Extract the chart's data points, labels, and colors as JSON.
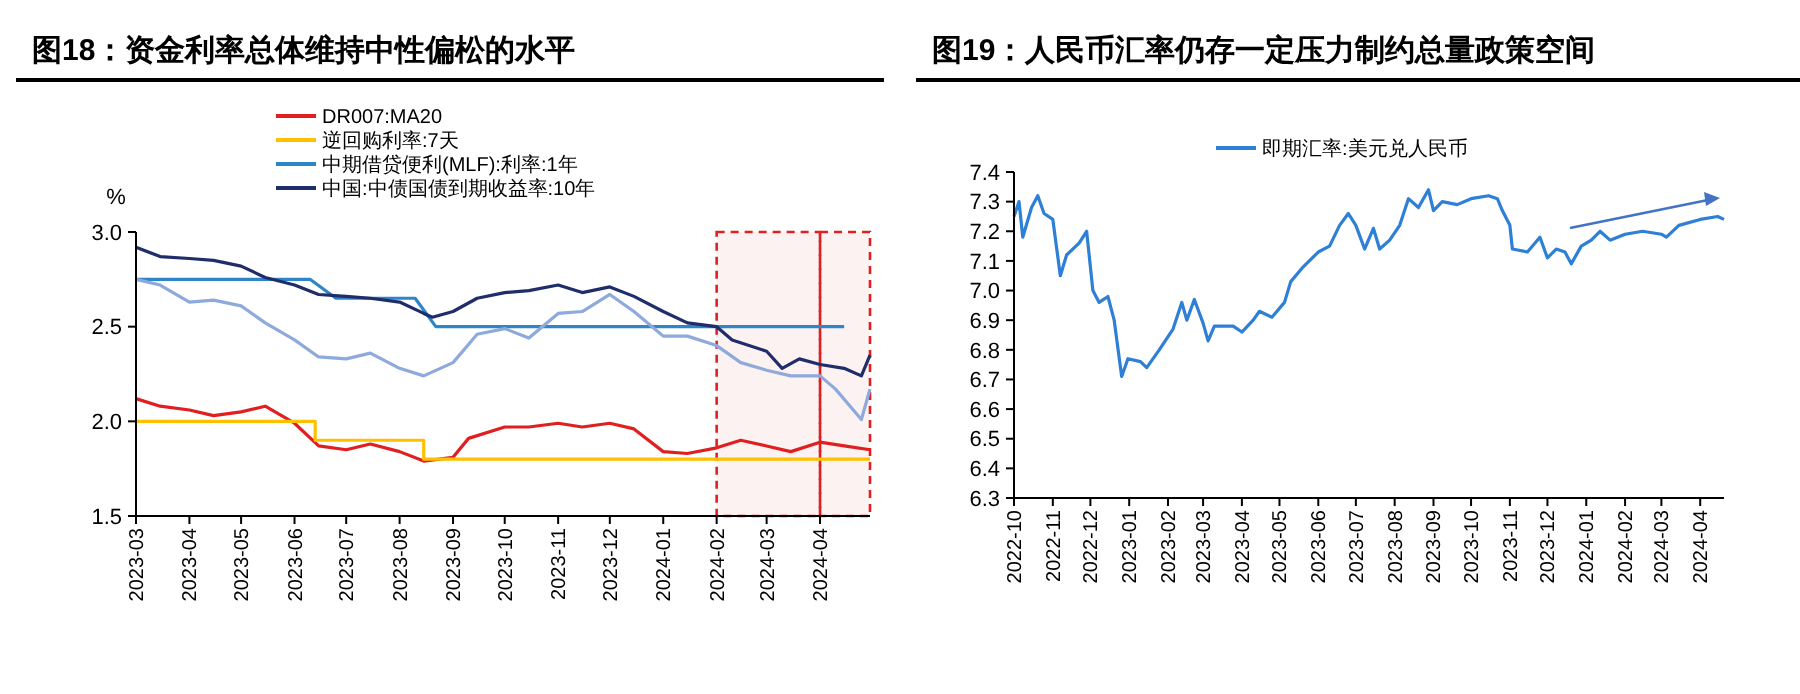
{
  "chart_data": [
    {
      "type": "line",
      "title": "图18：资金利率总体维持中性偏松的水平",
      "ylabel": "%",
      "legend": "top",
      "grid": false,
      "xlim": [
        "2023-03-01",
        "2024-04-30"
      ],
      "xticks": [
        "2023-03",
        "2023-04",
        "2023-05",
        "2023-06",
        "2023-07",
        "2023-08",
        "2023-09",
        "2023-10",
        "2023-11",
        "2023-12",
        "2024-01",
        "2024-02",
        "2024-03",
        "2024-04"
      ],
      "ylim": [
        1.5,
        3.0
      ],
      "yticks": [
        {
          "value": 1.5,
          "label": "1.5"
        },
        {
          "value": 2,
          "label": "2.0"
        },
        {
          "value": 2.5,
          "label": "2.5"
        },
        {
          "value": 3,
          "label": "3.0"
        }
      ],
      "bands": [
        {
          "axis": "x",
          "from": "2024-02-01",
          "to": "2024-04-01",
          "color": "#e02020"
        },
        {
          "axis": "x",
          "from": "2024-04-01",
          "to": "2024-04-30",
          "color": "#e02020"
        }
      ],
      "series": [
        {
          "name": "DR007:MA20",
          "color": "#e02020",
          "x": [
            "2023-03-01",
            "2023-03-15",
            "2023-04-01",
            "2023-04-15",
            "2023-05-01",
            "2023-05-15",
            "2023-06-01",
            "2023-06-15",
            "2023-07-01",
            "2023-07-15",
            "2023-08-01",
            "2023-08-15",
            "2023-09-01",
            "2023-09-10",
            "2023-10-01",
            "2023-10-15",
            "2023-11-01",
            "2023-11-15",
            "2023-12-01",
            "2023-12-15",
            "2024-01-01",
            "2024-01-15",
            "2024-02-01",
            "2024-02-15",
            "2024-03-01",
            "2024-03-15",
            "2024-04-01",
            "2024-04-15",
            "2024-04-30"
          ],
          "values": [
            2.12,
            2.08,
            2.06,
            2.03,
            2.05,
            2.08,
            1.99,
            1.87,
            1.85,
            1.88,
            1.84,
            1.79,
            1.81,
            1.91,
            1.97,
            1.97,
            1.99,
            1.97,
            1.99,
            1.96,
            1.84,
            1.83,
            1.86,
            1.9,
            1.87,
            1.84,
            1.89,
            1.87,
            1.85
          ]
        },
        {
          "name": "逆回购利率:7天",
          "type": "step",
          "color": "#ffc000",
          "x": [
            "2023-03-01",
            "2023-06-13",
            "2023-08-15",
            "2024-04-30"
          ],
          "values": [
            2.0,
            1.9,
            1.8,
            1.8
          ]
        },
        {
          "name": "中期借贷便利(MLF):利率:1年",
          "color": "#2e86c8",
          "x": [
            "2023-03-01",
            "2023-06-10",
            "2023-06-25",
            "2023-08-10",
            "2023-08-22",
            "2024-04-15"
          ],
          "values": [
            2.75,
            2.75,
            2.65,
            2.65,
            2.5,
            2.5
          ]
        },
        {
          "name": "中国:中债国债到期收益率:10年",
          "color": "#1f2d6b",
          "x": [
            "2023-03-01",
            "2023-03-15",
            "2023-04-01",
            "2023-04-15",
            "2023-05-01",
            "2023-05-15",
            "2023-06-01",
            "2023-06-15",
            "2023-07-01",
            "2023-07-15",
            "2023-08-01",
            "2023-08-15",
            "2023-08-20",
            "2023-09-01",
            "2023-09-15",
            "2023-10-01",
            "2023-10-15",
            "2023-11-01",
            "2023-11-15",
            "2023-12-01",
            "2023-12-15",
            "2024-01-01",
            "2024-01-15",
            "2024-02-01",
            "2024-02-10",
            "2024-03-01",
            "2024-03-10",
            "2024-03-20",
            "2024-04-01",
            "2024-04-15",
            "2024-04-25",
            "2024-04-30"
          ],
          "values": [
            2.92,
            2.87,
            2.86,
            2.85,
            2.82,
            2.76,
            2.72,
            2.67,
            2.66,
            2.65,
            2.63,
            2.57,
            2.55,
            2.58,
            2.65,
            2.68,
            2.69,
            2.72,
            2.68,
            2.71,
            2.66,
            2.58,
            2.52,
            2.5,
            2.43,
            2.37,
            2.28,
            2.33,
            2.3,
            2.28,
            2.24,
            2.35
          ]
        },
        {
          "color": "#8ea9db",
          "x": [
            "2023-03-01",
            "2023-03-15",
            "2023-04-01",
            "2023-04-15",
            "2023-05-01",
            "2023-05-15",
            "2023-06-01",
            "2023-06-15",
            "2023-07-01",
            "2023-07-15",
            "2023-08-01",
            "2023-08-15",
            "2023-09-01",
            "2023-09-15",
            "2023-10-01",
            "2023-10-15",
            "2023-11-01",
            "2023-11-15",
            "2023-12-01",
            "2023-12-15",
            "2024-01-01",
            "2024-01-15",
            "2024-02-01",
            "2024-02-15",
            "2024-03-01",
            "2024-03-15",
            "2024-04-01",
            "2024-04-10",
            "2024-04-25",
            "2024-04-30"
          ],
          "values": [
            2.75,
            2.72,
            2.63,
            2.64,
            2.61,
            2.52,
            2.43,
            2.34,
            2.33,
            2.36,
            2.28,
            2.24,
            2.31,
            2.46,
            2.49,
            2.44,
            2.57,
            2.58,
            2.67,
            2.58,
            2.45,
            2.45,
            2.4,
            2.31,
            2.27,
            2.24,
            2.24,
            2.17,
            2.01,
            2.17
          ]
        }
      ]
    },
    {
      "type": "line",
      "title": "图19：人民币汇率仍存一定压力制约总量政策空间",
      "legend": "top",
      "grid": false,
      "xlim": [
        "2022-10-01",
        "2024-04-20"
      ],
      "xticks": [
        "2022-10",
        "2022-11",
        "2022-12",
        "2023-01",
        "2023-02",
        "2023-03",
        "2023-04",
        "2023-05",
        "2023-06",
        "2023-07",
        "2023-08",
        "2023-09",
        "2023-10",
        "2023-11",
        "2023-12",
        "2024-01",
        "2024-02",
        "2024-03",
        "2024-04"
      ],
      "ylim": [
        6.3,
        7.4
      ],
      "yticks": [
        {
          "value": 6.3,
          "label": "6.3"
        },
        {
          "value": 6.4,
          "label": "6.4"
        },
        {
          "value": 6.5,
          "label": "6.5"
        },
        {
          "value": 6.6,
          "label": "6.6"
        },
        {
          "value": 6.7,
          "label": "6.7"
        },
        {
          "value": 6.8,
          "label": "6.8"
        },
        {
          "value": 6.9,
          "label": "6.9"
        },
        {
          "value": 7,
          "label": "7.0"
        },
        {
          "value": 7.1,
          "label": "7.1"
        },
        {
          "value": 7.2,
          "label": "7.2"
        },
        {
          "value": 7.3,
          "label": "7.3"
        },
        {
          "value": 7.4,
          "label": "7.4"
        }
      ],
      "series": [
        {
          "name": "即期汇率:美元兑人民币",
          "color": "#2e7fd6",
          "x": [
            "2022-10-01",
            "2022-10-05",
            "2022-10-08",
            "2022-10-15",
            "2022-10-20",
            "2022-10-25",
            "2022-11-01",
            "2022-11-07",
            "2022-11-12",
            "2022-11-22",
            "2022-11-28",
            "2022-12-03",
            "2022-12-08",
            "2022-12-15",
            "2022-12-20",
            "2022-12-26",
            "2022-12-31",
            "2023-01-10",
            "2023-01-15",
            "2023-01-25",
            "2023-02-05",
            "2023-02-12",
            "2023-02-16",
            "2023-02-22",
            "2023-03-01",
            "2023-03-05",
            "2023-03-10",
            "2023-03-25",
            "2023-04-01",
            "2023-04-10",
            "2023-04-15",
            "2023-04-25",
            "2023-05-05",
            "2023-05-10",
            "2023-05-20",
            "2023-06-01",
            "2023-06-10",
            "2023-06-18",
            "2023-06-25",
            "2023-07-01",
            "2023-07-08",
            "2023-07-15",
            "2023-07-20",
            "2023-07-28",
            "2023-08-05",
            "2023-08-12",
            "2023-08-20",
            "2023-08-28",
            "2023-09-01",
            "2023-09-08",
            "2023-09-20",
            "2023-10-01",
            "2023-10-15",
            "2023-10-22",
            "2023-10-26",
            "2023-11-01",
            "2023-11-03",
            "2023-11-15",
            "2023-11-25",
            "2023-12-01",
            "2023-12-08",
            "2023-12-15",
            "2023-12-20",
            "2023-12-28",
            "2024-01-05",
            "2024-01-12",
            "2024-01-20",
            "2024-02-01",
            "2024-02-15",
            "2024-03-01",
            "2024-03-05",
            "2024-03-15",
            "2024-04-01",
            "2024-04-15",
            "2024-04-20"
          ],
          "values": [
            7.25,
            7.3,
            7.18,
            7.28,
            7.32,
            7.26,
            7.24,
            7.05,
            7.12,
            7.16,
            7.2,
            7.0,
            6.96,
            6.98,
            6.9,
            6.71,
            6.77,
            6.76,
            6.74,
            6.8,
            6.87,
            6.96,
            6.9,
            6.97,
            6.89,
            6.83,
            6.88,
            6.88,
            6.86,
            6.9,
            6.93,
            6.91,
            6.96,
            7.03,
            7.08,
            7.13,
            7.15,
            7.22,
            7.26,
            7.22,
            7.14,
            7.21,
            7.14,
            7.17,
            7.22,
            7.31,
            7.28,
            7.34,
            7.27,
            7.3,
            7.29,
            7.31,
            7.32,
            7.31,
            7.27,
            7.22,
            7.14,
            7.13,
            7.18,
            7.11,
            7.14,
            7.13,
            7.09,
            7.15,
            7.17,
            7.2,
            7.17,
            7.19,
            7.2,
            7.19,
            7.18,
            7.22,
            7.24,
            7.25,
            7.24
          ]
        }
      ]
    }
  ]
}
